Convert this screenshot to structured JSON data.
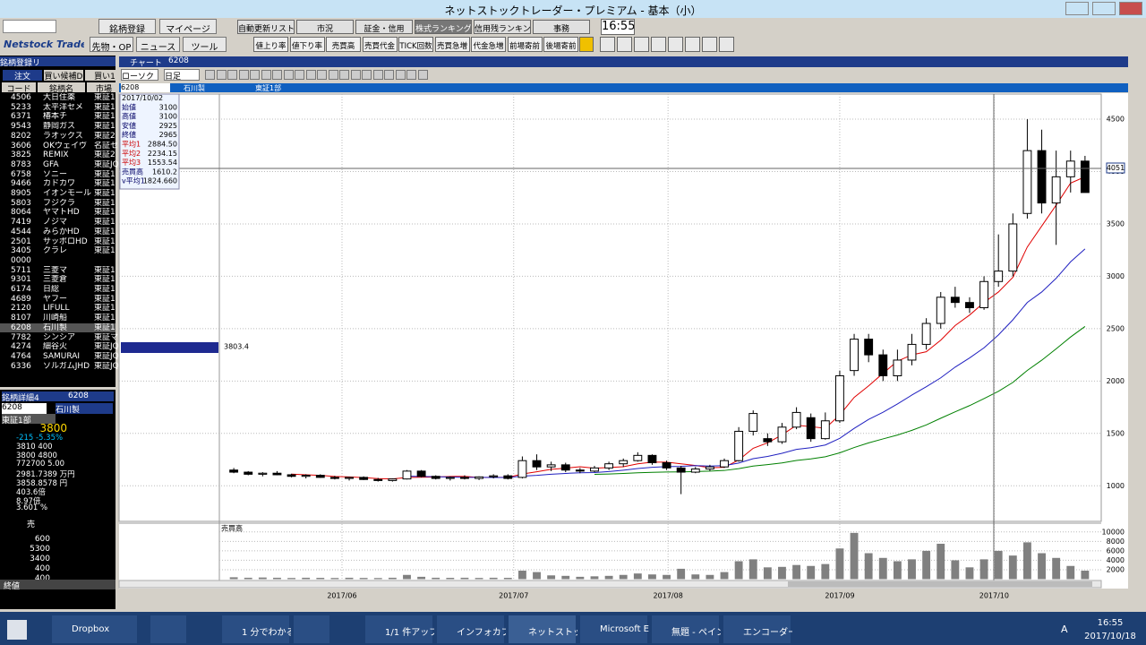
{
  "window": {
    "title": "ネットストックトレーダー・プレミアム - 基本（小）"
  },
  "toolbar": {
    "logo": "Netstock Trader",
    "left_row1": [
      "銘柄登録",
      "マイページ"
    ],
    "left_row2": [
      "先物・OP",
      "ニュース",
      "ツール"
    ],
    "menus": [
      "自動更新リスト",
      "市況",
      "証金・信用",
      "株式ランキング",
      "信用残ランキング",
      "事務"
    ],
    "buttons": [
      "値上り率",
      "値下り率",
      "売買高",
      "売買代金",
      "TICK回数",
      "売買急増",
      "代金急増",
      "前場寄前",
      "後場寄前"
    ],
    "time": "16:55"
  },
  "list": {
    "title": "銘柄登録リ",
    "tabs": [
      "注文",
      "買い候補D",
      "買い1"
    ],
    "headers": [
      "コード",
      "銘柄名",
      "市場"
    ],
    "rows": [
      [
        "4506",
        "大日住薬",
        "東証1"
      ],
      [
        "5233",
        "太平洋セメ",
        "東証1"
      ],
      [
        "6371",
        "椿本チ",
        "東証1"
      ],
      [
        "9543",
        "静岡ガス",
        "東証1"
      ],
      [
        "8202",
        "ラオックス",
        "東証2"
      ],
      [
        "3606",
        "OKウェイヴ",
        "名証セ"
      ],
      [
        "3825",
        "REMIX",
        "東証2"
      ],
      [
        "8783",
        "GFA",
        "東証JQ"
      ],
      [
        "6758",
        "ソニー",
        "東証1"
      ],
      [
        "9466",
        "カドカワ",
        "東証1"
      ],
      [
        "8905",
        "イオンモール",
        "東証1"
      ],
      [
        "5803",
        "フジクラ",
        "東証1"
      ],
      [
        "8064",
        "ヤマトHD",
        "東証1"
      ],
      [
        "7419",
        "ノジマ",
        "東証1"
      ],
      [
        "4544",
        "みらかHD",
        "東証1"
      ],
      [
        "2501",
        "サッポロHD",
        "東証1"
      ],
      [
        "3405",
        "クラレ",
        "東証1"
      ],
      [
        "0000",
        "",
        ""
      ],
      [
        "5711",
        "三菱マ",
        "東証1"
      ],
      [
        "9301",
        "三菱倉",
        "東証1"
      ],
      [
        "6174",
        "日総",
        "東証1"
      ],
      [
        "4689",
        "ヤフー",
        "東証1"
      ],
      [
        "2120",
        "LIFULL",
        "東証1"
      ],
      [
        "8107",
        "川崎船",
        "東証1"
      ],
      [
        "6208",
        "石川製",
        "東証1"
      ],
      [
        "7782",
        "シンシア",
        "東証マ"
      ],
      [
        "4274",
        "細谷火",
        "東証JQ"
      ],
      [
        "4764",
        "SAMURAI",
        "東証JQ"
      ],
      [
        "6336",
        "ソルガムJHD",
        "東証JQ"
      ]
    ]
  },
  "detail": {
    "title": "銘柄詳細4",
    "code": "6208",
    "name": "石川製",
    "market": "東証1部",
    "price": "3800",
    "rows": [
      "-215  -5.35%",
      "3810     400",
      "3800    4800",
      "772700  5.00",
      "2981.7389 万円",
      "3858.8578 円",
      "403.6倍",
      "8.97倍",
      "3.601 %"
    ],
    "board_label": "売",
    "board": [
      "600",
      "5300",
      "3400",
      "400",
      "400"
    ],
    "close_label": "終値"
  },
  "chart_window": {
    "title": "チャート",
    "code": "6208",
    "name": "石川製",
    "market": "東証1部",
    "style": "ローソク",
    "period": "日足",
    "info": [
      [
        "",
        "2017/10/02"
      ],
      [
        "始値",
        "3100"
      ],
      [
        "高値",
        "3100"
      ],
      [
        "安値",
        "2925"
      ],
      [
        "終値",
        "2965"
      ],
      [
        "平均1",
        "2884.50"
      ],
      [
        "平均2",
        "2234.15"
      ],
      [
        "平均3",
        "1553.54"
      ],
      [
        "売買高",
        "1610.2"
      ],
      [
        "v平均1",
        "1824.660"
      ]
    ],
    "cursor_label": "4051",
    "volume_title": "売買高",
    "profile_label": "3803.4"
  },
  "chart_data": {
    "type": "candlestick",
    "open": [
      1150,
      1130,
      1110,
      1120,
      1105,
      1090,
      1100,
      1080,
      1070,
      1080,
      1060,
      1050,
      1065,
      1140,
      1090,
      1070,
      1080,
      1070,
      1085,
      1095,
      1080,
      1240,
      1180,
      1200,
      1150,
      1140,
      1170,
      1210,
      1240,
      1290,
      1220,
      1170,
      1130,
      1160,
      1180,
      1240,
      1520,
      1450,
      1420,
      1560,
      1650,
      1450,
      1620,
      2100,
      2400,
      2250,
      2050,
      2200,
      2350,
      2550,
      2800,
      2750,
      2700,
      2950,
      3050,
      3600,
      4200,
      3700,
      3950,
      4100
    ],
    "high": [
      1170,
      1140,
      1130,
      1140,
      1115,
      1110,
      1110,
      1095,
      1085,
      1090,
      1075,
      1070,
      1150,
      1150,
      1100,
      1090,
      1100,
      1090,
      1110,
      1110,
      1280,
      1300,
      1230,
      1220,
      1170,
      1190,
      1230,
      1260,
      1320,
      1300,
      1240,
      1190,
      1180,
      1200,
      1260,
      1560,
      1720,
      1500,
      1600,
      1750,
      1690,
      1700,
      2100,
      2450,
      2450,
      2300,
      2300,
      2450,
      2600,
      2850,
      2900,
      2800,
      3000,
      3400,
      3600,
      4500,
      4400,
      4200,
      4200,
      4150
    ],
    "low": [
      1120,
      1100,
      1090,
      1100,
      1080,
      1070,
      1075,
      1060,
      1050,
      1055,
      1040,
      1040,
      1060,
      1080,
      1060,
      1050,
      1060,
      1055,
      1070,
      1060,
      1070,
      1150,
      1140,
      1130,
      1120,
      1130,
      1150,
      1180,
      1230,
      1200,
      1150,
      920,
      1120,
      1140,
      1170,
      1230,
      1480,
      1380,
      1400,
      1540,
      1420,
      1440,
      1600,
      2050,
      2180,
      2000,
      2000,
      2150,
      2300,
      2500,
      2700,
      2650,
      2680,
      2900,
      3000,
      3550,
      3600,
      3300,
      3800,
      3800
    ],
    "close": [
      1130,
      1110,
      1120,
      1105,
      1090,
      1100,
      1080,
      1070,
      1080,
      1060,
      1050,
      1065,
      1140,
      1090,
      1070,
      1080,
      1070,
      1085,
      1095,
      1070,
      1240,
      1180,
      1200,
      1150,
      1140,
      1170,
      1210,
      1240,
      1290,
      1220,
      1170,
      1130,
      1160,
      1180,
      1240,
      1520,
      1690,
      1420,
      1560,
      1700,
      1450,
      1620,
      2050,
      2400,
      2250,
      2050,
      2200,
      2350,
      2550,
      2800,
      2750,
      2700,
      2950,
      3050,
      3500,
      4200,
      3700,
      3950,
      4100,
      3800
    ],
    "ylim": [
      660,
      4740
    ],
    "yticks": [
      1000,
      1500,
      2000,
      2500,
      3000,
      3500,
      4000,
      4500
    ],
    "xlim": [
      -1,
      60
    ],
    "xticks": [
      {
        "value": 7.5,
        "label": "2017/06"
      },
      {
        "value": 19.4,
        "label": "2017/07"
      },
      {
        "value": 30.1,
        "label": "2017/08"
      },
      {
        "value": 42,
        "label": "2017/09"
      },
      {
        "value": 52.7,
        "label": "2017/10"
      }
    ],
    "up_color": "#ffffff",
    "down_color": "#000000",
    "grid": true,
    "volume": {
      "values": [
        400,
        300,
        350,
        300,
        250,
        300,
        280,
        250,
        300,
        260,
        240,
        300,
        900,
        500,
        300,
        280,
        300,
        260,
        300,
        280,
        1800,
        1500,
        800,
        700,
        500,
        600,
        700,
        900,
        1200,
        1000,
        900,
        2200,
        1000,
        900,
        1500,
        3800,
        4200,
        2500,
        2600,
        3000,
        2800,
        3200,
        6500,
        9800,
        5500,
        4500,
        3800,
        4200,
        6000,
        7500,
        4000,
        2500,
        4200,
        6000,
        5000,
        7800,
        5500,
        4500,
        2800,
        1800
      ],
      "ylim": [
        0,
        11100
      ],
      "yticks": [
        2000,
        4000,
        6000,
        8000,
        10000
      ],
      "color": "#808080"
    }
  },
  "taskbar": {
    "items": [
      "Dropbox",
      "",
      "",
      "1 分でわかる...",
      "",
      "1/1 件アップ...",
      "インフォカプセ...",
      "ネットストック...",
      "Microsoft E...",
      "無題 - ペイント",
      "エンコーダー - ..."
    ],
    "ime": "A",
    "time": "16:55",
    "date": "2017/10/18"
  }
}
